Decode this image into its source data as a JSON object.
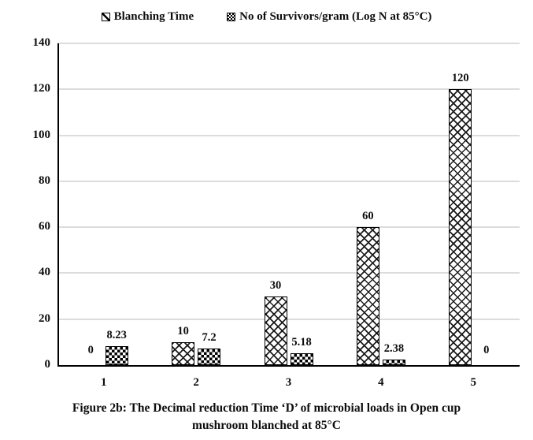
{
  "legend": {
    "items": [
      {
        "label": "Blanching Time",
        "marker": "diagonal-hatch-swatch-icon",
        "pattern": "diagonal-cross"
      },
      {
        "label": "No of Survivors/gram (Log N at 85°C)",
        "marker": "checkerboard-swatch-icon",
        "pattern": "checkerboard"
      }
    ]
  },
  "chart_data": {
    "type": "bar",
    "categories": [
      "1",
      "2",
      "3",
      "4",
      "5"
    ],
    "series": [
      {
        "name": "Blanching Time",
        "pattern": "diagonal-cross",
        "values": [
          0,
          10,
          30,
          60,
          120
        ],
        "labels": [
          "0",
          "10",
          "30",
          "60",
          "120"
        ]
      },
      {
        "name": "No of Survivors/gram (Log N at 85°C)",
        "pattern": "checkerboard",
        "values": [
          8.23,
          7.2,
          5.18,
          2.38,
          0
        ],
        "labels": [
          "8.23",
          "7.2",
          "5.18",
          "2.38",
          "0"
        ]
      }
    ],
    "title": "",
    "xlabel": "",
    "ylabel": "",
    "ylim": [
      0,
      140
    ],
    "yticks": [
      0,
      20,
      40,
      60,
      80,
      100,
      120,
      140
    ],
    "grid": "horizontal-light-gray",
    "legend_position": "top-center",
    "style": "black-white-patterned-bars"
  },
  "caption": {
    "line1": "Figure 2b: The Decimal reduction Time ‘D’ of microbial loads in Open cup",
    "line2": "mushroom blanched at 85°C"
  },
  "colors": {
    "background": "#ffffff",
    "gridline": "#dcdcdc",
    "axis": "#000000",
    "text": "#0d0d0d"
  }
}
